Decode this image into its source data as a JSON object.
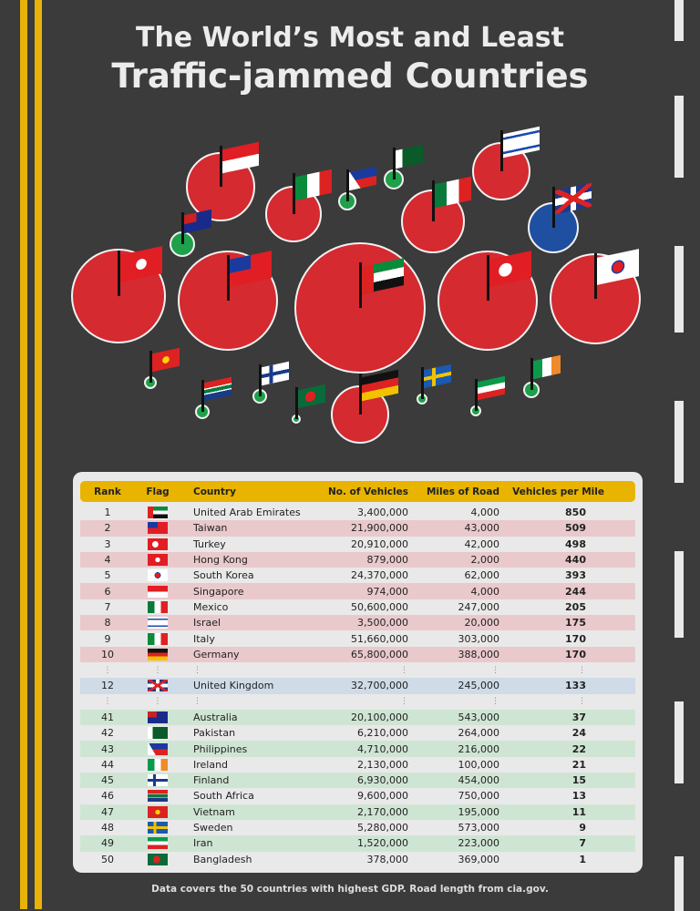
{
  "title": {
    "line1": "The World’s Most and Least",
    "line2": "Traffic-jammed Countries"
  },
  "colors": {
    "most": "#d42a30",
    "least": "#1fa04a",
    "uk": "#1f4fa0",
    "header": "#e8b400"
  },
  "table": {
    "headers": [
      "Rank",
      "Flag",
      "Country",
      "No. of Vehicles",
      "Miles of Road",
      "Vehicles per Mile"
    ],
    "rows": [
      {
        "rank": "1",
        "flag": "uae",
        "country": "United Arab Emirates",
        "vehicles": "3,400,000",
        "miles": "4,000",
        "vpm": "850",
        "group": "most"
      },
      {
        "rank": "2",
        "flag": "taiwan",
        "country": "Taiwan",
        "vehicles": "21,900,000",
        "miles": "43,000",
        "vpm": "509",
        "group": "most"
      },
      {
        "rank": "3",
        "flag": "turkey",
        "country": "Turkey",
        "vehicles": "20,910,000",
        "miles": "42,000",
        "vpm": "498",
        "group": "most"
      },
      {
        "rank": "4",
        "flag": "hongkong",
        "country": "Hong Kong",
        "vehicles": "879,000",
        "miles": "2,000",
        "vpm": "440",
        "group": "most"
      },
      {
        "rank": "5",
        "flag": "southkorea",
        "country": "South Korea",
        "vehicles": "24,370,000",
        "miles": "62,000",
        "vpm": "393",
        "group": "most"
      },
      {
        "rank": "6",
        "flag": "singapore",
        "country": "Singapore",
        "vehicles": "974,000",
        "miles": "4,000",
        "vpm": "244",
        "group": "most"
      },
      {
        "rank": "7",
        "flag": "mexico",
        "country": "Mexico",
        "vehicles": "50,600,000",
        "miles": "247,000",
        "vpm": "205",
        "group": "most"
      },
      {
        "rank": "8",
        "flag": "israel",
        "country": "Israel",
        "vehicles": "3,500,000",
        "miles": "20,000",
        "vpm": "175",
        "group": "most"
      },
      {
        "rank": "9",
        "flag": "italy",
        "country": "Italy",
        "vehicles": "51,660,000",
        "miles": "303,000",
        "vpm": "170",
        "group": "most"
      },
      {
        "rank": "10",
        "flag": "germany",
        "country": "Germany",
        "vehicles": "65,800,000",
        "miles": "388,000",
        "vpm": "170",
        "group": "most"
      },
      {
        "gap": true
      },
      {
        "rank": "12",
        "flag": "uk",
        "country": "United Kingdom",
        "vehicles": "32,700,000",
        "miles": "245,000",
        "vpm": "133",
        "group": "uk"
      },
      {
        "gap": true
      },
      {
        "rank": "41",
        "flag": "australia",
        "country": "Australia",
        "vehicles": "20,100,000",
        "miles": "543,000",
        "vpm": "37",
        "group": "least"
      },
      {
        "rank": "42",
        "flag": "pakistan",
        "country": "Pakistan",
        "vehicles": "6,210,000",
        "miles": "264,000",
        "vpm": "24",
        "group": "least"
      },
      {
        "rank": "43",
        "flag": "philippines",
        "country": "Philippines",
        "vehicles": "4,710,000",
        "miles": "216,000",
        "vpm": "22",
        "group": "least"
      },
      {
        "rank": "44",
        "flag": "ireland",
        "country": "Ireland",
        "vehicles": "2,130,000",
        "miles": "100,000",
        "vpm": "21",
        "group": "least"
      },
      {
        "rank": "45",
        "flag": "finland",
        "country": "Finland",
        "vehicles": "6,930,000",
        "miles": "454,000",
        "vpm": "15",
        "group": "least"
      },
      {
        "rank": "46",
        "flag": "southafrica",
        "country": "South Africa",
        "vehicles": "9,600,000",
        "miles": "750,000",
        "vpm": "13",
        "group": "least"
      },
      {
        "rank": "47",
        "flag": "vietnam",
        "country": "Vietnam",
        "vehicles": "2,170,000",
        "miles": "195,000",
        "vpm": "11",
        "group": "least"
      },
      {
        "rank": "48",
        "flag": "sweden",
        "country": "Sweden",
        "vehicles": "5,280,000",
        "miles": "573,000",
        "vpm": "9",
        "group": "least"
      },
      {
        "rank": "49",
        "flag": "iran",
        "country": "Iran",
        "vehicles": "1,520,000",
        "miles": "223,000",
        "vpm": "7",
        "group": "least"
      },
      {
        "rank": "50",
        "flag": "bangladesh",
        "country": "Bangladesh",
        "vehicles": "378,000",
        "miles": "369,000",
        "vpm": "1",
        "group": "least"
      }
    ]
  },
  "footer": "Data covers the 50 countries with highest GDP. Road length from cia.gov."
}
